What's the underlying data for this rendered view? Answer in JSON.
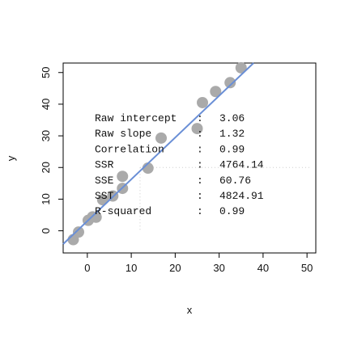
{
  "chart_data": {
    "type": "scatter",
    "xlabel": "x",
    "ylabel": "y",
    "xlim": [
      -5.5,
      52
    ],
    "ylim": [
      -7,
      53
    ],
    "x_ticks": [
      0,
      10,
      20,
      30,
      40,
      50
    ],
    "y_ticks": [
      0,
      10,
      20,
      30,
      40,
      50
    ],
    "grid": false,
    "points": [
      {
        "x": -3.2,
        "y": -2.8
      },
      {
        "x": -2.0,
        "y": -0.4
      },
      {
        "x": 0.2,
        "y": 3.3
      },
      {
        "x": 1.2,
        "y": 4.4
      },
      {
        "x": 2.0,
        "y": 4.3
      },
      {
        "x": 3.5,
        "y": 9.8
      },
      {
        "x": 5.8,
        "y": 11.0
      },
      {
        "x": 8.0,
        "y": 13.4
      },
      {
        "x": 8.0,
        "y": 17.2
      },
      {
        "x": 13.8,
        "y": 19.8
      },
      {
        "x": 16.8,
        "y": 29.3
      },
      {
        "x": 25.0,
        "y": 32.3
      },
      {
        "x": 26.2,
        "y": 40.5
      },
      {
        "x": 29.2,
        "y": 44.0
      },
      {
        "x": 32.5,
        "y": 46.8
      },
      {
        "x": 35.0,
        "y": 51.5
      }
    ],
    "fit_line": {
      "intercept": 3.06,
      "slope": 1.32,
      "color": "#6a8fd6"
    },
    "point_color": "#aaaaaa",
    "stats": [
      {
        "label": "Raw intercept",
        "sep": ":",
        "value": "3.06"
      },
      {
        "label": "Raw slope",
        "sep": ":",
        "value": "1.32"
      },
      {
        "label": "Correlation",
        "sep": ":",
        "value": "0.99"
      },
      {
        "label": "SSR",
        "sep": ":",
        "value": "4764.14"
      },
      {
        "label": "SSE",
        "sep": ":",
        "value": "60.76"
      },
      {
        "label": "SST",
        "sep": ":",
        "value": "4824.91"
      },
      {
        "label": "R-squared",
        "sep": ":",
        "value": "0.99"
      }
    ],
    "guide_x": 12,
    "guide_y": 20
  }
}
